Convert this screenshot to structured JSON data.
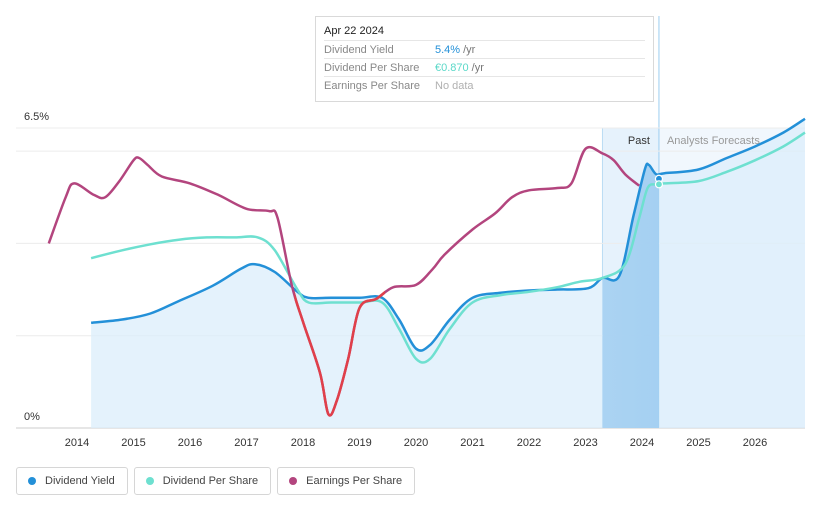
{
  "tooltip": {
    "date": "Apr 22 2024",
    "rows": [
      {
        "label": "Dividend Yield",
        "value": "5.4%",
        "unit": "/yr",
        "color": "#2390d8"
      },
      {
        "label": "Dividend Per Share",
        "value": "€0.870",
        "unit": "/yr",
        "color": "#5ad8c8"
      },
      {
        "label": "Earnings Per Share",
        "value": "No data",
        "unit": "",
        "color": "#b0b0b0"
      }
    ]
  },
  "legend": [
    {
      "label": "Dividend Yield",
      "color": "#2390d8"
    },
    {
      "label": "Dividend Per Share",
      "color": "#6ee0d0"
    },
    {
      "label": "Earnings Per Share",
      "color": "#b3457e"
    }
  ],
  "regions": {
    "past": "Past",
    "forecast": "Analysts Forecasts"
  },
  "chart_data": {
    "type": "line",
    "y_top_label": "6.5%",
    "y_bottom_label": "0%",
    "ylim": [
      0,
      6.5
    ],
    "xlim": [
      2013.5,
      2027.0
    ],
    "x_ticks": [
      "2014",
      "2015",
      "2016",
      "2017",
      "2018",
      "2019",
      "2020",
      "2021",
      "2022",
      "2023",
      "2024",
      "2025",
      "2026"
    ],
    "past_region": [
      2023.3,
      2024.3
    ],
    "forecast_start": 2024.3,
    "series": [
      {
        "name": "Dividend Yield",
        "color": "#2390d8",
        "area": true,
        "x": [
          2014.25,
          2014.8,
          2015.3,
          2015.8,
          2016.4,
          2016.9,
          2017.15,
          2017.5,
          2017.9,
          2018.1,
          2018.5,
          2019.0,
          2019.4,
          2019.7,
          2020.0,
          2020.25,
          2020.6,
          2021.0,
          2021.5,
          2022.0,
          2022.5,
          2023.05,
          2023.3,
          2023.6,
          2023.85,
          2024.05,
          2024.12,
          2024.25,
          2024.4,
          2025.0,
          2025.5,
          2026.0,
          2026.5,
          2027.0
        ],
        "y": [
          2.28,
          2.35,
          2.48,
          2.75,
          3.08,
          3.45,
          3.55,
          3.38,
          2.95,
          2.82,
          2.82,
          2.82,
          2.82,
          2.35,
          1.72,
          1.8,
          2.35,
          2.82,
          2.93,
          2.98,
          3.0,
          3.03,
          3.25,
          3.3,
          4.6,
          5.6,
          5.7,
          5.5,
          5.52,
          5.6,
          5.85,
          6.1,
          6.4,
          6.7
        ]
      },
      {
        "name": "Dividend Per Share",
        "color": "#6ee0d0",
        "area": false,
        "x": [
          2014.25,
          2014.8,
          2015.3,
          2015.8,
          2016.3,
          2016.8,
          2017.2,
          2017.5,
          2017.9,
          2018.1,
          2018.5,
          2019.0,
          2019.4,
          2019.7,
          2020.0,
          2020.25,
          2020.6,
          2021.0,
          2021.5,
          2022.0,
          2022.5,
          2022.9,
          2023.3,
          2023.7,
          2023.95,
          2024.1,
          2024.25,
          2024.4,
          2025.0,
          2025.5,
          2026.0,
          2026.5,
          2027.0
        ],
        "y": [
          3.68,
          3.85,
          3.98,
          4.08,
          4.13,
          4.13,
          4.13,
          3.85,
          3.0,
          2.72,
          2.72,
          2.72,
          2.72,
          2.15,
          1.5,
          1.5,
          2.15,
          2.72,
          2.88,
          2.95,
          3.05,
          3.17,
          3.25,
          3.55,
          4.55,
          5.2,
          5.28,
          5.3,
          5.35,
          5.55,
          5.8,
          6.1,
          6.4
        ]
      },
      {
        "name": "Earnings Per Share",
        "color": "#b3457e",
        "negative_color": "#e0404a",
        "x": [
          2013.5,
          2013.8,
          2013.95,
          2014.3,
          2014.5,
          2014.75,
          2015.0,
          2015.1,
          2015.25,
          2015.5,
          2016.0,
          2016.5,
          2017.0,
          2017.4,
          2017.55,
          2017.8,
          2018.0,
          2018.3,
          2018.45,
          2018.6,
          2018.8,
          2019.0,
          2019.3,
          2019.6,
          2020.0,
          2020.3,
          2020.5,
          2021.0,
          2021.4,
          2021.7,
          2022.0,
          2022.5,
          2022.75,
          2023.0,
          2023.3,
          2023.5,
          2023.7,
          2023.95
        ],
        "y": [
          4.0,
          5.0,
          5.3,
          5.05,
          5.0,
          5.35,
          5.8,
          5.85,
          5.7,
          5.45,
          5.3,
          5.05,
          4.75,
          4.7,
          4.55,
          3.1,
          2.3,
          1.2,
          0.3,
          0.6,
          1.5,
          2.6,
          2.8,
          3.05,
          3.1,
          3.45,
          3.75,
          4.3,
          4.65,
          5.0,
          5.15,
          5.2,
          5.3,
          6.05,
          5.95,
          5.8,
          5.5,
          5.25
        ]
      }
    ],
    "highlight_points": [
      {
        "series": "Dividend Yield",
        "x": 2024.3,
        "y": 5.4
      },
      {
        "series": "Dividend Per Share",
        "x": 2024.3,
        "y": 5.28
      }
    ]
  }
}
